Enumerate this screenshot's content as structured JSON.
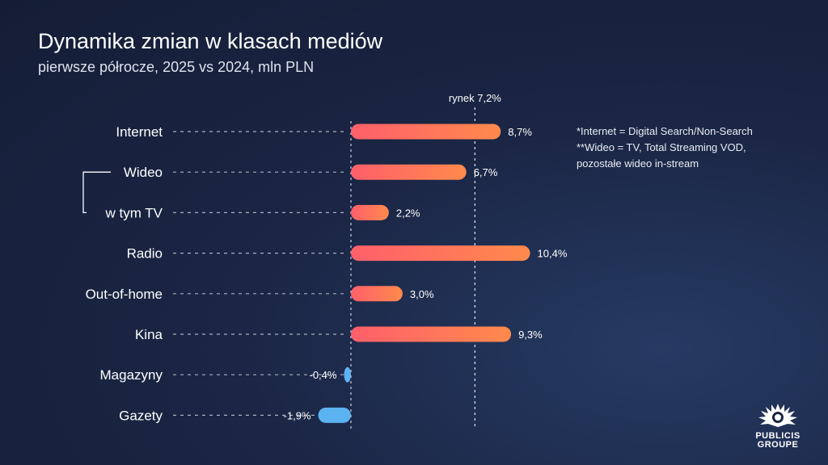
{
  "title": "Dynamika zmian w klasach mediów",
  "subtitle": "pierwsze półrocze, 2025 vs 2024, mln PLN",
  "notes": [
    "*Internet = Digital Search/Non-Search",
    "**Wideo = TV, Total Streaming VOD,",
    "pozostałe wideo in-stream"
  ],
  "logo": {
    "line1": "PUBLICIS",
    "line2": "GROUPE"
  },
  "colors": {
    "positive_start": "#ff5f6b",
    "positive_end": "#ff8a4c",
    "negative": "#5cb3f2",
    "background": "#1b2645"
  },
  "chart_data": {
    "type": "bar",
    "orientation": "horizontal",
    "categories": [
      "Internet",
      "Wideo",
      "w tym TV",
      "Radio",
      "Out-of-home",
      "Kina",
      "Magazyny",
      "Gazety"
    ],
    "values": [
      8.7,
      6.7,
      2.2,
      10.4,
      3.0,
      9.3,
      -0.4,
      -1.9
    ],
    "value_labels": [
      "8,7%",
      "6,7%",
      "2,2%",
      "10,4%",
      "3,0%",
      "9,3%",
      "-0,4%",
      "-1,9%"
    ],
    "reference_line": {
      "value": 7.2,
      "label": "rynek 7,2%"
    },
    "unit": "%",
    "sub_item_of": {
      "w tym TV": "Wideo"
    }
  }
}
